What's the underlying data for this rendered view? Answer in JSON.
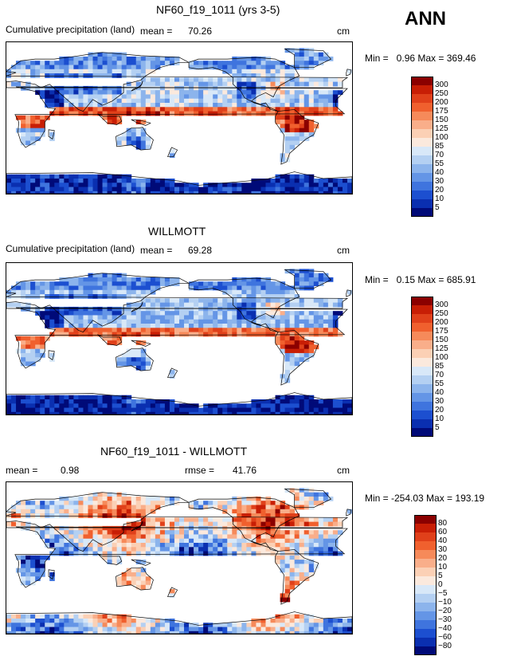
{
  "figure": {
    "season_label": "ANN"
  },
  "panels": [
    {
      "title": "NF60_f19_1011 (yrs 3-5)",
      "subtitle": "Cumulative precipitation (land)",
      "mean_label": "mean =",
      "mean_value": "70.26",
      "units": "cm",
      "minmax": "Min =   0.96 Max = 369.46"
    },
    {
      "title": "WILLMOTT",
      "subtitle": "Cumulative precipitation (land)",
      "mean_label": "mean =",
      "mean_value": "69.28",
      "units": "cm",
      "minmax": "Min =   0.15 Max = 685.91"
    },
    {
      "title": "NF60_f19_1011 - WILLMOTT",
      "mean_label": "mean =",
      "mean_value": "0.98",
      "rmse_label": "rmse =",
      "rmse_value": "41.76",
      "units": "cm",
      "minmax": "Min = -254.03 Max = 193.19"
    }
  ],
  "chart_data": [
    {
      "type": "heatmap",
      "title": "NF60_f19_1011 (yrs 3-5)",
      "variable": "Cumulative precipitation (land)",
      "units": "cm",
      "mean": 70.26,
      "min": 0.96,
      "max": 369.46,
      "colorbar_levels": [
        "300",
        "250",
        "200",
        "175",
        "150",
        "125",
        "100",
        "85",
        "70",
        "55",
        "40",
        "30",
        "20",
        "10",
        "5"
      ],
      "colorbar_colors": [
        "#8b0000",
        "#c81e05",
        "#e0401a",
        "#f0602e",
        "#f68a5a",
        "#f9ae8a",
        "#fbd0b5",
        "#fbe9dd",
        "#d8e8f8",
        "#b4d0f2",
        "#8cb4ec",
        "#6495e6",
        "#3f74de",
        "#1c4fd0",
        "#0a2fb0",
        "#000a78"
      ]
    },
    {
      "type": "heatmap",
      "title": "WILLMOTT",
      "variable": "Cumulative precipitation (land)",
      "units": "cm",
      "mean": 69.28,
      "min": 0.15,
      "max": 685.91,
      "colorbar_levels": [
        "300",
        "250",
        "200",
        "175",
        "150",
        "125",
        "100",
        "85",
        "70",
        "55",
        "40",
        "30",
        "20",
        "10",
        "5"
      ],
      "colorbar_colors": [
        "#8b0000",
        "#c81e05",
        "#e0401a",
        "#f0602e",
        "#f68a5a",
        "#f9ae8a",
        "#fbd0b5",
        "#fbe9dd",
        "#d8e8f8",
        "#b4d0f2",
        "#8cb4ec",
        "#6495e6",
        "#3f74de",
        "#1c4fd0",
        "#0a2fb0",
        "#000a78"
      ]
    },
    {
      "type": "heatmap",
      "title": "NF60_f19_1011 - WILLMOTT",
      "units": "cm",
      "mean": 0.98,
      "rmse": 41.76,
      "min": -254.03,
      "max": 193.19,
      "colorbar_levels": [
        "80",
        "60",
        "40",
        "30",
        "20",
        "10",
        "5",
        "0",
        "−5",
        "−10",
        "−20",
        "−30",
        "−40",
        "−60",
        "−80"
      ],
      "colorbar_colors": [
        "#8b0000",
        "#c81e05",
        "#e0401a",
        "#f0602e",
        "#f68a5a",
        "#f9ae8a",
        "#fbd0b5",
        "#fbe9dd",
        "#d8e8f8",
        "#b4d0f2",
        "#8cb4ec",
        "#6495e6",
        "#3f74de",
        "#1c4fd0",
        "#0a2fb0",
        "#000a78"
      ]
    }
  ]
}
